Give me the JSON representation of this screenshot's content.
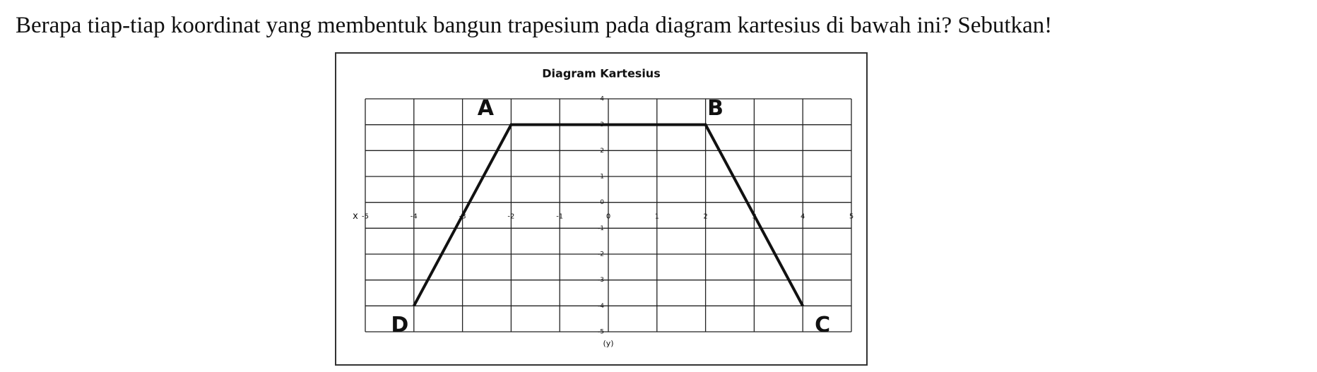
{
  "question": "Berapa tiap-tiap koordinat yang membentuk bangun trapesium pada diagram kartesius di bawah ini? Sebutkan!",
  "chart_data": {
    "type": "line",
    "title": "Diagram Kartesius",
    "x_label": "x",
    "y_label": "(y)",
    "x": [
      -4,
      -2,
      2,
      4
    ],
    "values": [
      -4,
      3,
      3,
      -4
    ],
    "point_labels": [
      "D",
      "A",
      "B",
      "C"
    ],
    "color": "#111111",
    "xlim": [
      -5,
      5
    ],
    "ylim": [
      -5,
      4
    ],
    "xticks": [
      -5,
      -4,
      -3,
      -2,
      -1,
      0,
      1,
      2,
      3,
      4,
      5
    ],
    "yticks": [
      -5,
      -4,
      -3,
      -2,
      -1,
      0,
      1,
      2,
      3,
      4
    ],
    "grid": true
  }
}
